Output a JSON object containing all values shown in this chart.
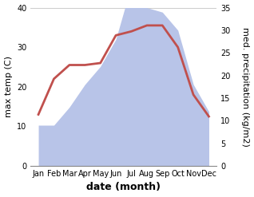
{
  "months": [
    "Jan",
    "Feb",
    "Mar",
    "Apr",
    "May",
    "Jun",
    "Jul",
    "Aug",
    "Sep",
    "Oct",
    "Nov",
    "Dec"
  ],
  "temperature": [
    13,
    22,
    25.5,
    25.5,
    26,
    33,
    34,
    35.5,
    35.5,
    30,
    18,
    12.5
  ],
  "precipitation": [
    9,
    9,
    13,
    18,
    22,
    28,
    40,
    35,
    34,
    30,
    18,
    12
  ],
  "temp_color": "#c0504d",
  "precip_fill_color": "#b8c4e8",
  "left_ylim": [
    0,
    40
  ],
  "right_ylim": [
    0,
    35
  ],
  "left_yticks": [
    0,
    10,
    20,
    30,
    40
  ],
  "right_yticks": [
    0,
    5,
    10,
    15,
    20,
    25,
    30,
    35
  ],
  "ylabel_left": "max temp (C)",
  "ylabel_right": "med. precipitation (kg/m2)",
  "xlabel": "date (month)",
  "line_width": 2.0,
  "background_color": "#ffffff",
  "tick_fontsize": 7,
  "label_fontsize": 8,
  "xlabel_fontsize": 9
}
